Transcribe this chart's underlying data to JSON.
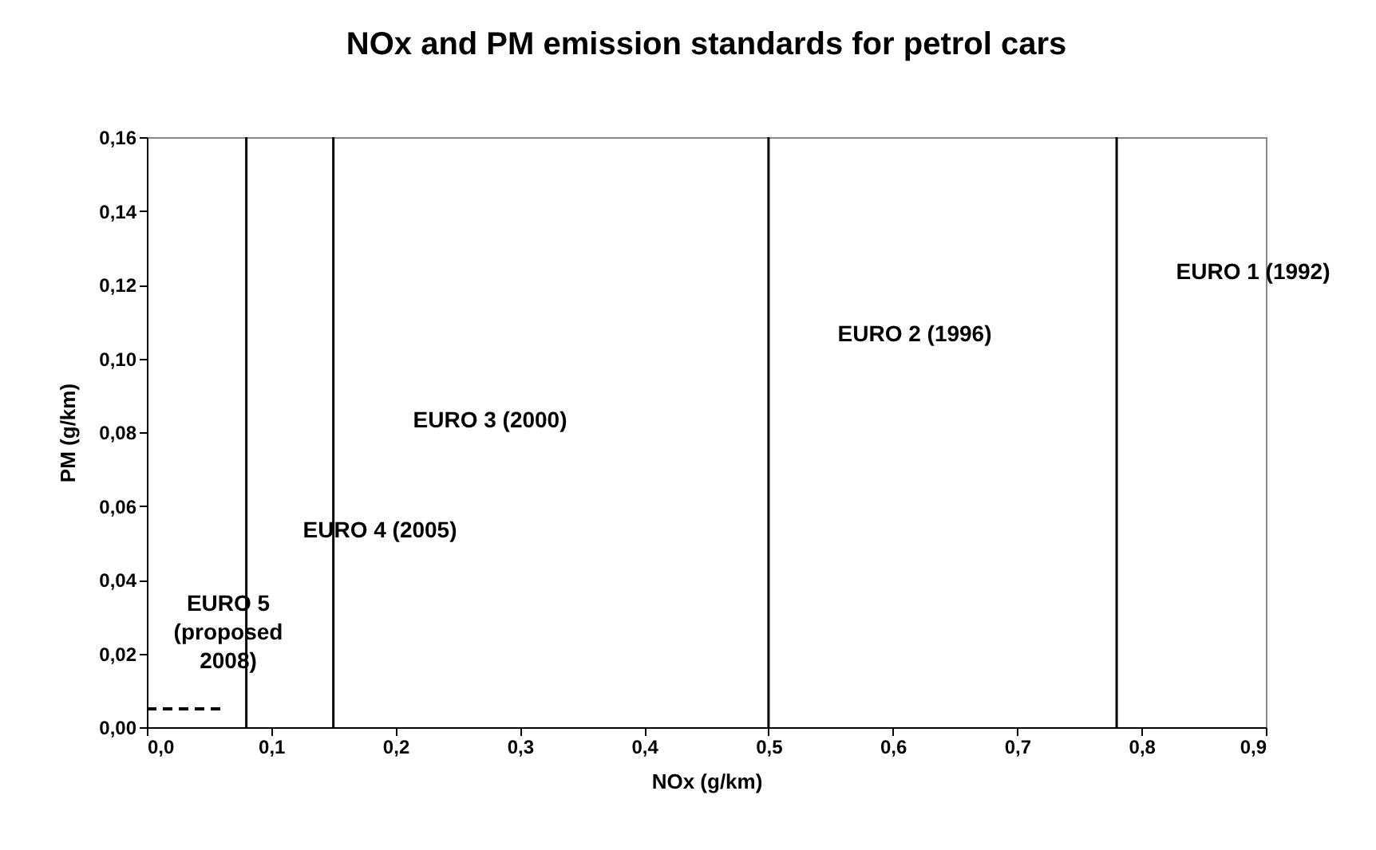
{
  "chart_data": {
    "type": "line",
    "title": "NOx and PM emission standards for petrol cars",
    "xlabel": "NOx (g/km)",
    "ylabel": "PM (g/km)",
    "series": [
      {
        "color": "#000000",
        "x": [
          0,
          0.06
        ],
        "values": [
          0.005,
          0.005
        ],
        "line_style": "dashed"
      }
    ],
    "xlim": [
      0,
      0.9
    ],
    "ylim": [
      0,
      0.16
    ],
    "xticks": [
      {
        "value": 0,
        "label": "0,0"
      },
      {
        "value": 0.1,
        "label": "0,1"
      },
      {
        "value": 0.2,
        "label": "0,2"
      },
      {
        "value": 0.3,
        "label": "0,3"
      },
      {
        "value": 0.4,
        "label": "0,4"
      },
      {
        "value": 0.5,
        "label": "0,5"
      },
      {
        "value": 0.6,
        "label": "0,6"
      },
      {
        "value": 0.7,
        "label": "0,7"
      },
      {
        "value": 0.8,
        "label": "0,8"
      },
      {
        "value": 0.9,
        "label": "0,9"
      }
    ],
    "yticks": [
      {
        "value": 0,
        "label": "0,00"
      },
      {
        "value": 0.02,
        "label": "0,02"
      },
      {
        "value": 0.04,
        "label": "0,04"
      },
      {
        "value": 0.06,
        "label": "0,06"
      },
      {
        "value": 0.08,
        "label": "0,08"
      },
      {
        "value": 0.1,
        "label": "0,10"
      },
      {
        "value": 0.12,
        "label": "0,12"
      },
      {
        "value": 0.14,
        "label": "0,14"
      },
      {
        "value": 0.16,
        "label": "0,16"
      }
    ],
    "ref_lines": [
      {
        "axis": "x",
        "value": 0.08,
        "color": "#000000"
      },
      {
        "axis": "x",
        "value": 0.15,
        "color": "#000000"
      },
      {
        "axis": "x",
        "value": 0.5,
        "color": "#000000"
      },
      {
        "axis": "x",
        "value": 0.78,
        "color": "#000000"
      }
    ],
    "annotations": [
      "EURO 5\n(proposed\n2008)",
      "EURO 4 (2005)",
      "EURO 3 (2000)",
      "EURO 2 (1996)",
      "EURO 1 (1992)"
    ],
    "grid": false
  }
}
